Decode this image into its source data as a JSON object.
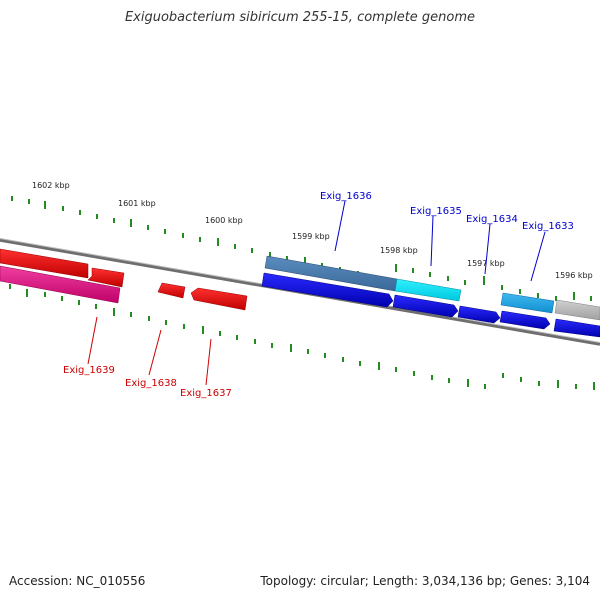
{
  "title": "Exiguobacterium sibiricum 255-15, complete genome",
  "footer": {
    "accession": "Accession: NC_010556",
    "stats": "Topology: circular; Length: 3,034,136 bp; Genes: 3,104"
  },
  "colors": {
    "backbone": "#808080",
    "tick": "#228B22",
    "forward_label": "#0000CC",
    "reverse_label": "#CC0000",
    "cds_forward": "#0000EE",
    "cds_reverse": "#EE0000",
    "cds_highlight_blue": "#4682B4",
    "cds_cyan": "#00E5EE",
    "cds_light_blue": "#1EA0E0",
    "cds_magenta": "#E0107A",
    "cds_grey": "#B0B0B0"
  },
  "kbp_labels": [
    "1602 kbp",
    "1601 kbp",
    "1600 kbp",
    "1599 kbp",
    "1598 kbp",
    "1597 kbp",
    "1596 kbp"
  ],
  "genes_forward": [
    "Exig_1636",
    "Exig_1635",
    "Exig_1634",
    "Exig_1633"
  ],
  "genes_reverse": [
    "Exig_1639",
    "Exig_1638",
    "Exig_1637"
  ]
}
